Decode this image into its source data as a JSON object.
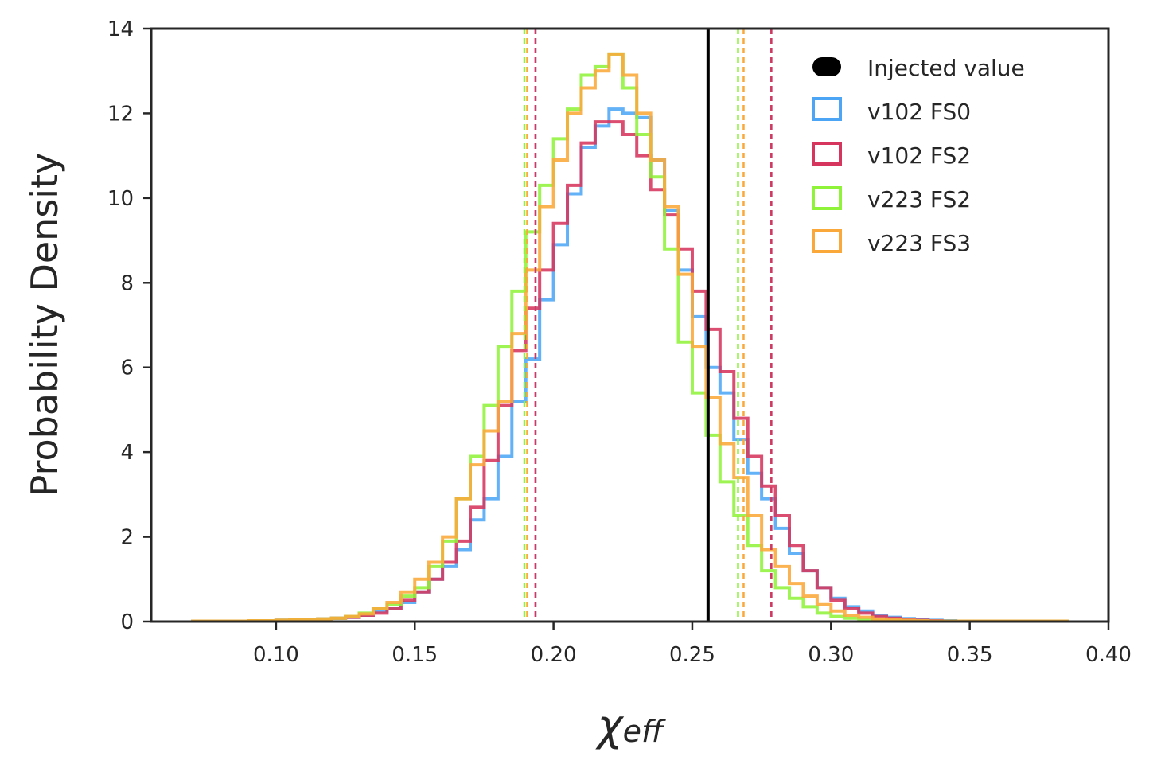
{
  "chart_data": {
    "type": "histogram",
    "xlabel_symbol": "χ",
    "xlabel_subscript": "eff",
    "ylabel": "Probability Density",
    "xlim": [
      0.055,
      0.4
    ],
    "ylim": [
      0,
      14
    ],
    "xticks": [
      0.1,
      0.15,
      0.2,
      0.25,
      0.3,
      0.35,
      0.4
    ],
    "xtick_labels": [
      "0.10",
      "0.15",
      "0.20",
      "0.25",
      "0.30",
      "0.35",
      "0.40"
    ],
    "yticks": [
      0,
      2,
      4,
      6,
      8,
      10,
      12,
      14
    ],
    "ytick_labels": [
      "0",
      "2",
      "4",
      "6",
      "8",
      "10",
      "12",
      "14"
    ],
    "injected_value": 0.2557,
    "legend": {
      "placement": "top-right",
      "items": [
        {
          "label": "Injected value",
          "marker": "filled-pill",
          "color": "#000000"
        },
        {
          "label": "v102 FS0",
          "marker": "open-square",
          "color": "#4da6f5"
        },
        {
          "label": "v102 FS2",
          "marker": "open-square",
          "color": "#d6365d"
        },
        {
          "label": "v223 FS2",
          "marker": "open-square",
          "color": "#8ff33a"
        },
        {
          "label": "v223 FS3",
          "marker": "open-square",
          "color": "#fba83a"
        }
      ]
    },
    "series": [
      {
        "name": "v102 FS0",
        "color": "#4da6f5",
        "interval": [
          0.1935,
          0.2785
        ],
        "edges": [
          0.07,
          0.075,
          0.08,
          0.085,
          0.09,
          0.095,
          0.1,
          0.105,
          0.11,
          0.115,
          0.12,
          0.125,
          0.13,
          0.135,
          0.14,
          0.145,
          0.15,
          0.155,
          0.16,
          0.165,
          0.17,
          0.175,
          0.18,
          0.185,
          0.19,
          0.195,
          0.2,
          0.205,
          0.21,
          0.215,
          0.22,
          0.225,
          0.23,
          0.235,
          0.24,
          0.245,
          0.25,
          0.255,
          0.26,
          0.265,
          0.27,
          0.275,
          0.28,
          0.285,
          0.29,
          0.295,
          0.3,
          0.305,
          0.31,
          0.315,
          0.32,
          0.325,
          0.33,
          0.335,
          0.34,
          0.345,
          0.35,
          0.355,
          0.36,
          0.365,
          0.37,
          0.375,
          0.38,
          0.385
        ],
        "values": [
          0.01,
          0.01,
          0.01,
          0.01,
          0.02,
          0.02,
          0.03,
          0.04,
          0.05,
          0.06,
          0.08,
          0.1,
          0.15,
          0.25,
          0.3,
          0.45,
          0.7,
          1.0,
          1.3,
          1.7,
          2.4,
          2.9,
          3.9,
          5.2,
          6.2,
          7.6,
          8.9,
          10.1,
          11.2,
          11.7,
          12.1,
          12.0,
          11.9,
          10.9,
          9.7,
          8.3,
          7.2,
          6.0,
          5.4,
          4.3,
          3.5,
          2.9,
          2.2,
          1.6,
          1.2,
          0.8,
          0.55,
          0.35,
          0.25,
          0.15,
          0.1,
          0.07,
          0.05,
          0.03,
          0.02,
          0.01,
          0.01,
          0.01,
          0.01,
          0.01,
          0.01,
          0.01,
          0.01
        ]
      },
      {
        "name": "v102 FS2",
        "color": "#d6365d",
        "interval": [
          0.1935,
          0.2785
        ],
        "edges": [
          0.07,
          0.075,
          0.08,
          0.085,
          0.09,
          0.095,
          0.1,
          0.105,
          0.11,
          0.115,
          0.12,
          0.125,
          0.13,
          0.135,
          0.14,
          0.145,
          0.15,
          0.155,
          0.16,
          0.165,
          0.17,
          0.175,
          0.18,
          0.185,
          0.19,
          0.195,
          0.2,
          0.205,
          0.21,
          0.215,
          0.22,
          0.225,
          0.23,
          0.235,
          0.24,
          0.245,
          0.25,
          0.255,
          0.26,
          0.265,
          0.27,
          0.275,
          0.28,
          0.285,
          0.29,
          0.295,
          0.3,
          0.305,
          0.31,
          0.315,
          0.32,
          0.325,
          0.33,
          0.335,
          0.34,
          0.345,
          0.35,
          0.355,
          0.36,
          0.365,
          0.37,
          0.375,
          0.38,
          0.385
        ],
        "values": [
          0.01,
          0.01,
          0.01,
          0.01,
          0.02,
          0.02,
          0.03,
          0.04,
          0.05,
          0.06,
          0.08,
          0.1,
          0.15,
          0.2,
          0.3,
          0.5,
          0.7,
          1.0,
          1.4,
          1.9,
          2.7,
          3.8,
          5.1,
          6.4,
          7.4,
          8.3,
          9.4,
          10.3,
          11.3,
          11.8,
          11.8,
          11.5,
          11.0,
          10.2,
          9.6,
          8.8,
          7.8,
          6.9,
          5.9,
          4.8,
          3.9,
          3.2,
          2.5,
          1.8,
          1.2,
          0.8,
          0.5,
          0.3,
          0.2,
          0.12,
          0.08,
          0.05,
          0.03,
          0.02,
          0.01,
          0.01,
          0.01,
          0.01,
          0.01,
          0.01,
          0.01,
          0.01,
          0.01
        ]
      },
      {
        "name": "v223 FS2",
        "color": "#8ff33a",
        "interval": [
          0.1895,
          0.2665
        ],
        "edges": [
          0.07,
          0.075,
          0.08,
          0.085,
          0.09,
          0.095,
          0.1,
          0.105,
          0.11,
          0.115,
          0.12,
          0.125,
          0.13,
          0.135,
          0.14,
          0.145,
          0.15,
          0.155,
          0.16,
          0.165,
          0.17,
          0.175,
          0.18,
          0.185,
          0.19,
          0.195,
          0.2,
          0.205,
          0.21,
          0.215,
          0.22,
          0.225,
          0.23,
          0.235,
          0.24,
          0.245,
          0.25,
          0.255,
          0.26,
          0.265,
          0.27,
          0.275,
          0.28,
          0.285,
          0.29,
          0.295,
          0.3,
          0.305,
          0.31,
          0.315,
          0.32,
          0.325,
          0.33,
          0.335,
          0.34,
          0.345,
          0.35,
          0.355,
          0.36,
          0.365,
          0.37,
          0.375,
          0.38,
          0.385
        ],
        "values": [
          0.01,
          0.01,
          0.01,
          0.01,
          0.02,
          0.02,
          0.03,
          0.04,
          0.05,
          0.06,
          0.08,
          0.12,
          0.2,
          0.3,
          0.4,
          0.6,
          0.8,
          1.3,
          1.9,
          2.9,
          3.9,
          5.1,
          6.5,
          7.8,
          9.2,
          10.3,
          11.4,
          12.1,
          12.9,
          13.1,
          13.4,
          12.6,
          11.5,
          10.5,
          8.8,
          6.6,
          5.4,
          4.4,
          3.3,
          2.5,
          1.8,
          1.2,
          0.8,
          0.55,
          0.35,
          0.2,
          0.12,
          0.08,
          0.05,
          0.03,
          0.02,
          0.01,
          0.01,
          0.01,
          0.01,
          0.01,
          0.01,
          0.01,
          0.01,
          0.01,
          0.01,
          0.01,
          0.01
        ]
      },
      {
        "name": "v223 FS3",
        "color": "#fba83a",
        "interval": [
          0.1905,
          0.2685
        ],
        "edges": [
          0.07,
          0.075,
          0.08,
          0.085,
          0.09,
          0.095,
          0.1,
          0.105,
          0.11,
          0.115,
          0.12,
          0.125,
          0.13,
          0.135,
          0.14,
          0.145,
          0.15,
          0.155,
          0.16,
          0.165,
          0.17,
          0.175,
          0.18,
          0.185,
          0.19,
          0.195,
          0.2,
          0.205,
          0.21,
          0.215,
          0.22,
          0.225,
          0.23,
          0.235,
          0.24,
          0.245,
          0.25,
          0.255,
          0.26,
          0.265,
          0.27,
          0.275,
          0.28,
          0.285,
          0.29,
          0.295,
          0.3,
          0.305,
          0.31,
          0.315,
          0.32,
          0.325,
          0.33,
          0.335,
          0.34,
          0.345,
          0.35,
          0.355,
          0.36,
          0.365,
          0.37,
          0.375,
          0.38,
          0.385
        ],
        "values": [
          0.01,
          0.01,
          0.01,
          0.01,
          0.02,
          0.02,
          0.03,
          0.04,
          0.05,
          0.06,
          0.08,
          0.12,
          0.18,
          0.3,
          0.45,
          0.7,
          1.0,
          1.4,
          2.0,
          2.9,
          3.7,
          4.5,
          5.2,
          6.8,
          8.3,
          9.8,
          10.9,
          12.0,
          12.6,
          13.0,
          13.4,
          12.9,
          12.0,
          10.9,
          9.8,
          8.2,
          6.5,
          5.3,
          4.2,
          3.4,
          2.5,
          1.7,
          1.3,
          0.9,
          0.6,
          0.4,
          0.25,
          0.15,
          0.1,
          0.06,
          0.04,
          0.03,
          0.02,
          0.01,
          0.01,
          0.01,
          0.01,
          0.01,
          0.01,
          0.01,
          0.01,
          0.01,
          0.01
        ]
      }
    ]
  }
}
